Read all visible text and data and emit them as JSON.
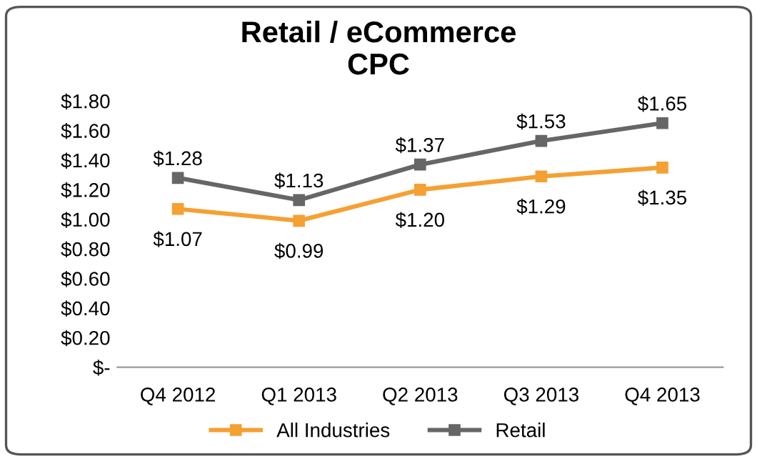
{
  "chart_data": {
    "type": "line",
    "title": "Retail / eCommerce\nCPC",
    "categories": [
      "Q4 2012",
      "Q1 2013",
      "Q2 2013",
      "Q3 2013",
      "Q4 2013"
    ],
    "series": [
      {
        "name": "All Industries",
        "color": "#f5a033",
        "values": [
          1.07,
          0.99,
          1.2,
          1.29,
          1.35
        ],
        "value_labels": [
          "$1.07",
          "$0.99",
          "$1.20",
          "$1.29",
          "$1.35"
        ]
      },
      {
        "name": "Retail",
        "color": "#666666",
        "values": [
          1.28,
          1.13,
          1.37,
          1.53,
          1.65
        ],
        "value_labels": [
          "$1.28",
          "$1.13",
          "$1.37",
          "$1.53",
          "$1.65"
        ]
      }
    ],
    "ylim": [
      0,
      1.8
    ],
    "yticks": [
      {
        "value": 0,
        "label": "$-"
      },
      {
        "value": 0.2,
        "label": "$0.20"
      },
      {
        "value": 0.4,
        "label": "$0.40"
      },
      {
        "value": 0.6,
        "label": "$0.60"
      },
      {
        "value": 0.8,
        "label": "$0.80"
      },
      {
        "value": 1.0,
        "label": "$1.00"
      },
      {
        "value": 1.2,
        "label": "$1.20"
      },
      {
        "value": 1.4,
        "label": "$1.40"
      },
      {
        "value": 1.6,
        "label": "$1.60"
      },
      {
        "value": 1.8,
        "label": "$1.80"
      }
    ],
    "grid": false,
    "legend": "bottom",
    "marker": "square",
    "line_style": "solid"
  }
}
